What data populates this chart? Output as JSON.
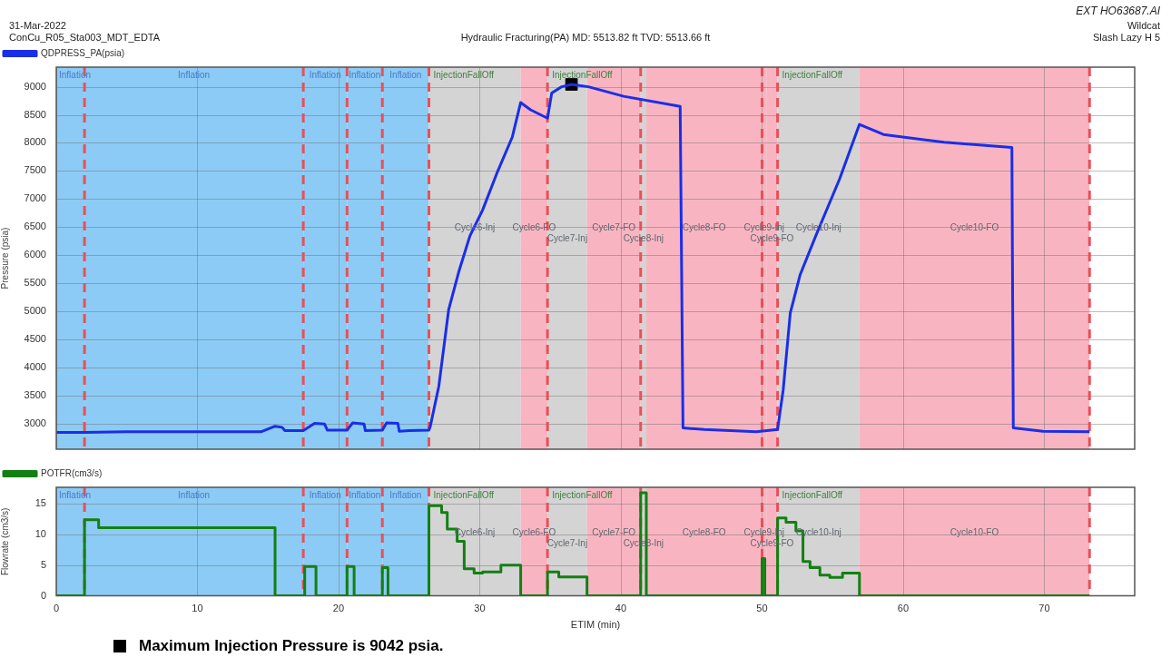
{
  "chart_data": [
    {
      "type": "line",
      "title": "Hydraulic Fracturing(PA) MD: 5513.82 ft TVD: 5513.66 ft",
      "ylabel": "Pressure (psia)",
      "annotations": [
        "31-Mar-2022",
        "ConCu_R05_Sta003_MDT_EDTA",
        "EXT HO63687.AI",
        "Wildcat",
        "Slash Lazy H 5"
      ],
      "xlim": [
        0,
        76.4
      ],
      "xticks": [
        0,
        10,
        20,
        30,
        40,
        50,
        60,
        70
      ],
      "ylim": [
        2540,
        9350
      ],
      "yticks": [
        3000,
        3500,
        4000,
        4500,
        5000,
        5500,
        6000,
        6500,
        7000,
        7500,
        8000,
        8500,
        9000
      ],
      "grid": true,
      "legend": "top left",
      "tick_labels": "y",
      "line_style": "solid",
      "bands": [
        {
          "axis": "x",
          "from": 0,
          "to": 2.0,
          "color": "#8ccbf5",
          "label": "Inflation"
        },
        {
          "axis": "x",
          "from": 2.0,
          "to": 17.5,
          "color": "#8ccbf5",
          "label": "Inflation"
        },
        {
          "axis": "x",
          "from": 17.5,
          "to": 20.6,
          "color": "#8ccbf5",
          "label": "Inflation"
        },
        {
          "axis": "x",
          "from": 20.6,
          "to": 23.1,
          "color": "#8ccbf5",
          "label": "Inflation"
        },
        {
          "axis": "x",
          "from": 23.1,
          "to": 26.4,
          "color": "#8ccbf5",
          "label": "Inflation"
        },
        {
          "axis": "x",
          "from": 26.4,
          "to": 32.9,
          "color": "#d4d4d4",
          "label": "Cycle6-Inj"
        },
        {
          "axis": "x",
          "from": 32.9,
          "to": 34.8,
          "color": "#f8b5c1",
          "label": "Cycle6-FO"
        },
        {
          "axis": "x",
          "from": 34.8,
          "to": 37.6,
          "color": "#d4d4d4",
          "label": "Cycle7-Inj"
        },
        {
          "axis": "x",
          "from": 37.6,
          "to": 41.4,
          "color": "#f8b5c1",
          "label": "Cycle7-FO"
        },
        {
          "axis": "x",
          "from": 41.4,
          "to": 41.8,
          "color": "#d4d4d4",
          "label": "Cycle8-Inj"
        },
        {
          "axis": "x",
          "from": 41.8,
          "to": 50.0,
          "color": "#f8b5c1",
          "label": "Cycle8-FO"
        },
        {
          "axis": "x",
          "from": 50.0,
          "to": 50.3,
          "color": "#f8b5c1",
          "label": "Cycle9-Inj"
        },
        {
          "axis": "x",
          "from": 50.3,
          "to": 51.1,
          "color": "#f8b5c1",
          "label": "Cycle9-FO"
        },
        {
          "axis": "x",
          "from": 51.1,
          "to": 56.9,
          "color": "#d4d4d4",
          "label": "Cycle10-Inj"
        },
        {
          "axis": "x",
          "from": 56.9,
          "to": 73.2,
          "color": "#f8b5c1",
          "label": "Cycle10-FO"
        }
      ],
      "ref_lines": [
        {
          "axis": "x",
          "value": 2.0,
          "color": "#e8505a",
          "line_style": "dashed"
        },
        {
          "axis": "x",
          "value": 17.5,
          "color": "#e8505a",
          "line_style": "dashed"
        },
        {
          "axis": "x",
          "value": 20.6,
          "color": "#e8505a",
          "line_style": "dashed"
        },
        {
          "axis": "x",
          "value": 23.1,
          "color": "#e8505a",
          "line_style": "dashed"
        },
        {
          "axis": "x",
          "value": 26.4,
          "color": "#e8505a",
          "line_style": "dashed",
          "label": "InjectionFallOff"
        },
        {
          "axis": "x",
          "value": 34.8,
          "color": "#e8505a",
          "line_style": "dashed",
          "label": "InjectionFallOff"
        },
        {
          "axis": "x",
          "value": 41.4,
          "color": "#e8505a",
          "line_style": "dashed"
        },
        {
          "axis": "x",
          "value": 50.0,
          "color": "#e8505a",
          "line_style": "dashed"
        },
        {
          "axis": "x",
          "value": 51.1,
          "color": "#e8505a",
          "line_style": "dashed",
          "label": "InjectionFallOff"
        },
        {
          "axis": "x",
          "value": 73.2,
          "color": "#e8505a",
          "line_style": "dashed"
        }
      ],
      "series": [
        {
          "name": "QDPRESS_PA(psia)",
          "color": "#1a2ee8",
          "x": [
            0,
            2,
            5,
            14.5,
            15.5,
            16,
            16.2,
            17.5,
            18.3,
            19,
            19.2,
            20.6,
            21.0,
            21.8,
            21.9,
            23.1,
            23.4,
            24.2,
            24.3,
            25,
            26.4,
            26.5,
            27.1,
            27.8,
            28.5,
            29.3,
            30.2,
            31.2,
            32.3,
            32.9,
            33.6,
            34.8,
            35.1,
            35.8,
            36.5,
            37.7,
            40.2,
            44.2,
            44.4,
            45.9,
            49.6,
            51.1,
            51.5,
            52.0,
            52.7,
            53.8,
            55.5,
            56.9,
            58.6,
            62.9,
            67.7,
            67.8,
            69.9,
            73.2
          ],
          "values": [
            2840,
            2840,
            2850,
            2850,
            2950,
            2930,
            2870,
            2870,
            3000,
            2990,
            2880,
            2880,
            3010,
            2990,
            2870,
            2880,
            3010,
            3000,
            2860,
            2870,
            2880,
            2950,
            3660,
            5030,
            5690,
            6340,
            6800,
            7450,
            8100,
            8720,
            8590,
            8440,
            8890,
            9000,
            9042,
            9000,
            8830,
            8650,
            2920,
            2890,
            2850,
            2890,
            3600,
            4970,
            5650,
            6340,
            7360,
            8330,
            8150,
            8010,
            7920,
            2920,
            2860,
            2850
          ]
        },
        {
          "type": "scatter",
          "color": "#000000",
          "marker": "square",
          "x": [
            36.5
          ],
          "values": [
            9042
          ]
        }
      ]
    },
    {
      "type": "step",
      "xlabel": "ETIM (min)",
      "ylabel": "Flowrate (cm3/s)",
      "annotations": [
        "Maximum Injection Pressure is 9042 psia."
      ],
      "xlim": [
        0,
        76.4
      ],
      "xticks": [
        0,
        10,
        20,
        30,
        40,
        50,
        60,
        70
      ],
      "ylim": [
        0,
        17.7
      ],
      "yticks": [
        0,
        5,
        10,
        15
      ],
      "grid": true,
      "legend": "top left",
      "line_style": "solid",
      "bands": [
        {
          "axis": "x",
          "from": 0,
          "to": 2.0,
          "color": "#8ccbf5",
          "label": "Inflation"
        },
        {
          "axis": "x",
          "from": 2.0,
          "to": 17.5,
          "color": "#8ccbf5",
          "label": "Inflation"
        },
        {
          "axis": "x",
          "from": 17.5,
          "to": 20.6,
          "color": "#8ccbf5",
          "label": "Inflation"
        },
        {
          "axis": "x",
          "from": 20.6,
          "to": 23.1,
          "color": "#8ccbf5",
          "label": "Inflation"
        },
        {
          "axis": "x",
          "from": 23.1,
          "to": 26.4,
          "color": "#8ccbf5",
          "label": "Inflation"
        },
        {
          "axis": "x",
          "from": 26.4,
          "to": 32.9,
          "color": "#d4d4d4",
          "label": "Cycle6-Inj"
        },
        {
          "axis": "x",
          "from": 32.9,
          "to": 34.8,
          "color": "#f8b5c1",
          "label": "Cycle6-FO"
        },
        {
          "axis": "x",
          "from": 34.8,
          "to": 37.6,
          "color": "#d4d4d4",
          "label": "Cycle7-Inj"
        },
        {
          "axis": "x",
          "from": 37.6,
          "to": 41.4,
          "color": "#f8b5c1",
          "label": "Cycle7-FO"
        },
        {
          "axis": "x",
          "from": 41.4,
          "to": 41.8,
          "color": "#d4d4d4",
          "label": "Cycle8-Inj"
        },
        {
          "axis": "x",
          "from": 41.8,
          "to": 50.0,
          "color": "#f8b5c1",
          "label": "Cycle8-FO"
        },
        {
          "axis": "x",
          "from": 50.0,
          "to": 50.3,
          "color": "#f8b5c1",
          "label": "Cycle9-Inj"
        },
        {
          "axis": "x",
          "from": 50.3,
          "to": 51.1,
          "color": "#f8b5c1",
          "label": "Cycle9-FO"
        },
        {
          "axis": "x",
          "from": 51.1,
          "to": 56.9,
          "color": "#d4d4d4",
          "label": "Cycle10-Inj"
        },
        {
          "axis": "x",
          "from": 56.9,
          "to": 73.2,
          "color": "#f8b5c1",
          "label": "Cycle10-FO"
        }
      ],
      "ref_lines": [
        {
          "axis": "x",
          "value": 2.0,
          "color": "#e8505a",
          "line_style": "dashed"
        },
        {
          "axis": "x",
          "value": 17.5,
          "color": "#e8505a",
          "line_style": "dashed"
        },
        {
          "axis": "x",
          "value": 20.6,
          "color": "#e8505a",
          "line_style": "dashed"
        },
        {
          "axis": "x",
          "value": 23.1,
          "color": "#e8505a",
          "line_style": "dashed"
        },
        {
          "axis": "x",
          "value": 26.4,
          "color": "#e8505a",
          "line_style": "dashed",
          "label": "InjectionFallOff"
        },
        {
          "axis": "x",
          "value": 34.8,
          "color": "#e8505a",
          "line_style": "dashed",
          "label": "InjectionFallOff"
        },
        {
          "axis": "x",
          "value": 41.4,
          "color": "#e8505a",
          "line_style": "dashed"
        },
        {
          "axis": "x",
          "value": 50.0,
          "color": "#e8505a",
          "line_style": "dashed"
        },
        {
          "axis": "x",
          "value": 51.1,
          "color": "#e8505a",
          "line_style": "dashed",
          "label": "InjectionFallOff"
        },
        {
          "axis": "x",
          "value": 73.2,
          "color": "#e8505a",
          "line_style": "dashed"
        }
      ],
      "series": [
        {
          "name": "POTFR(cm3/s)",
          "color": "#128012",
          "x": [
            0,
            2.0,
            3.0,
            15.5,
            17.6,
            18.4,
            20.6,
            21.1,
            23.1,
            23.5,
            26.4,
            27.3,
            27.7,
            28.4,
            28.9,
            29.6,
            30.2,
            31.5,
            32.9,
            34.8,
            35.6,
            37.6,
            41.4,
            41.8,
            50.0,
            50.2,
            51.1,
            51.7,
            52.4,
            52.9,
            53.4,
            54.1,
            54.8,
            55.7,
            56.9,
            73.2
          ],
          "values": [
            0,
            12.4,
            11.1,
            0,
            4.8,
            0,
            4.8,
            0,
            4.6,
            0,
            14.7,
            13.6,
            10.9,
            8.9,
            4.4,
            3.7,
            3.9,
            5.0,
            0,
            3.9,
            3.1,
            0,
            16.8,
            0,
            6.1,
            0,
            12.7,
            12.0,
            10.6,
            5.6,
            4.6,
            3.4,
            3.0,
            3.7,
            0,
            0
          ]
        }
      ]
    }
  ]
}
